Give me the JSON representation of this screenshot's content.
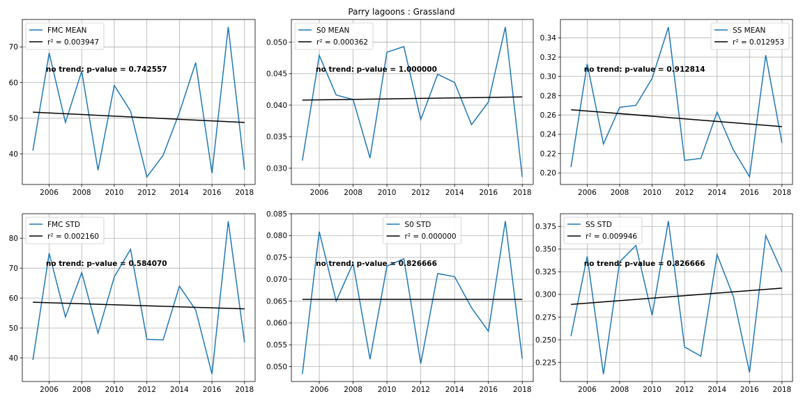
{
  "figure_title": "Parry lagoons : Grassland",
  "chart_data": [
    {
      "type": "line",
      "x": [
        2005,
        2006,
        2007,
        2008,
        2009,
        2010,
        2011,
        2012,
        2013,
        2014,
        2015,
        2016,
        2017,
        2018
      ],
      "series": [
        {
          "name": "FMC MEAN",
          "color": "#1f77b4",
          "values": [
            40.9,
            68.3,
            48.8,
            63.2,
            35.4,
            59.2,
            52.0,
            33.5,
            39.6,
            51.6,
            65.6,
            34.6,
            75.6,
            35.5
          ]
        },
        {
          "name": "r2_line",
          "color": "#000000",
          "values_start": 51.7,
          "values_end": 48.8
        }
      ],
      "legend": [
        "FMC MEAN",
        "r² = 0.003947"
      ],
      "legend_position": "upper-left",
      "annotation": "no trend: p-value = 0.742557",
      "xticks": [
        "2006",
        "2008",
        "2010",
        "2012",
        "2014",
        "2016",
        "2018"
      ],
      "yticks": [
        "40",
        "50",
        "60",
        "70"
      ],
      "ylim": [
        31.4,
        77.7
      ],
      "grid": true
    },
    {
      "type": "line",
      "x": [
        2005,
        2006,
        2007,
        2008,
        2009,
        2010,
        2011,
        2012,
        2013,
        2014,
        2015,
        2016,
        2017,
        2018
      ],
      "series": [
        {
          "name": "S0 MEAN",
          "color": "#1f77b4",
          "values": [
            0.0312,
            0.0479,
            0.0416,
            0.0409,
            0.0316,
            0.0484,
            0.0493,
            0.0377,
            0.0449,
            0.0436,
            0.0369,
            0.0405,
            0.0524,
            0.0286
          ]
        },
        {
          "name": "r2_line",
          "color": "#000000",
          "values_start": 0.0408,
          "values_end": 0.0413
        }
      ],
      "legend": [
        "S0 MEAN",
        "r² = 0.000362"
      ],
      "legend_position": "upper-left",
      "annotation": "no trend: p-value = 1.000000",
      "xticks": [
        "2006",
        "2008",
        "2010",
        "2012",
        "2014",
        "2016",
        "2018"
      ],
      "yticks": [
        "0.030",
        "0.035",
        "0.040",
        "0.045",
        "0.050"
      ],
      "ylim": [
        0.0274,
        0.0536
      ],
      "grid": true
    },
    {
      "type": "line",
      "x": [
        2005,
        2006,
        2007,
        2008,
        2009,
        2010,
        2011,
        2012,
        2013,
        2014,
        2015,
        2016,
        2017,
        2018
      ],
      "series": [
        {
          "name": "SS MEAN",
          "color": "#1f77b4",
          "values": [
            0.206,
            0.313,
            0.23,
            0.268,
            0.27,
            0.298,
            0.351,
            0.213,
            0.215,
            0.263,
            0.224,
            0.196,
            0.322,
            0.231
          ]
        },
        {
          "name": "r2_line",
          "color": "#000000",
          "values_start": 0.2655,
          "values_end": 0.248
        }
      ],
      "legend": [
        "SS MEAN",
        "r² = 0.012953"
      ],
      "legend_position": "upper-right",
      "annotation": "no trend: p-value = 0.912814",
      "xticks": [
        "2006",
        "2008",
        "2010",
        "2012",
        "2014",
        "2016",
        "2018"
      ],
      "yticks": [
        "0.20",
        "0.22",
        "0.24",
        "0.26",
        "0.28",
        "0.30",
        "0.32",
        "0.34"
      ],
      "ylim": [
        0.188,
        0.359
      ],
      "grid": true
    },
    {
      "type": "line",
      "x": [
        2005,
        2006,
        2007,
        2008,
        2009,
        2010,
        2011,
        2012,
        2013,
        2014,
        2015,
        2016,
        2017,
        2018
      ],
      "series": [
        {
          "name": "FMC STD",
          "color": "#1f77b4",
          "values": [
            39.3,
            75.0,
            53.7,
            68.5,
            48.3,
            67.1,
            76.3,
            46.2,
            46.0,
            64.0,
            56.0,
            34.6,
            85.7,
            45.2
          ]
        },
        {
          "name": "r2_line",
          "color": "#000000",
          "values_start": 58.6,
          "values_end": 56.4
        }
      ],
      "legend": [
        "FMC STD",
        "r² = 0.002160"
      ],
      "legend_position": "upper-left",
      "annotation": "no trend: p-value = 0.584070",
      "xticks": [
        "2006",
        "2008",
        "2010",
        "2012",
        "2014",
        "2016",
        "2018"
      ],
      "yticks": [
        "40",
        "50",
        "60",
        "70",
        "80"
      ],
      "ylim": [
        32.1,
        88.2
      ],
      "grid": true
    },
    {
      "type": "line",
      "x": [
        2005,
        2006,
        2007,
        2008,
        2009,
        2010,
        2011,
        2012,
        2013,
        2014,
        2015,
        2016,
        2017,
        2018
      ],
      "series": [
        {
          "name": "S0 STD",
          "color": "#1f77b4",
          "values": [
            0.0483,
            0.0809,
            0.065,
            0.0737,
            0.0517,
            0.073,
            0.0747,
            0.0507,
            0.0713,
            0.0706,
            0.0635,
            0.0581,
            0.0833,
            0.0518
          ]
        },
        {
          "name": "r2_line",
          "color": "#000000",
          "values_start": 0.0654,
          "values_end": 0.0654
        }
      ],
      "legend": [
        "S0 STD",
        "r² = 0.000000"
      ],
      "legend_position": "upper-center",
      "annotation": "no trend: p-value = 0.826666",
      "xticks": [
        "2006",
        "2008",
        "2010",
        "2012",
        "2014",
        "2016",
        "2018"
      ],
      "yticks": [
        "0.050",
        "0.055",
        "0.060",
        "0.065",
        "0.070",
        "0.075",
        "0.080",
        "0.085"
      ],
      "ylim": [
        0.0466,
        0.085
      ],
      "grid": true
    },
    {
      "type": "line",
      "x": [
        2005,
        2006,
        2007,
        2008,
        2009,
        2010,
        2011,
        2012,
        2013,
        2014,
        2015,
        2016,
        2017,
        2018
      ],
      "series": [
        {
          "name": "SS STD",
          "color": "#1f77b4",
          "values": [
            0.254,
            0.342,
            0.212,
            0.336,
            0.354,
            0.277,
            0.381,
            0.242,
            0.232,
            0.344,
            0.298,
            0.214,
            0.365,
            0.325
          ]
        },
        {
          "name": "r2_line",
          "color": "#000000",
          "values_start": 0.289,
          "values_end": 0.307
        }
      ],
      "legend": [
        "SS STD",
        "r² = 0.009946"
      ],
      "legend_position": "upper-left",
      "annotation": "no trend: p-value = 0.826666",
      "xticks": [
        "2006",
        "2008",
        "2010",
        "2012",
        "2014",
        "2016",
        "2018"
      ],
      "yticks": [
        "0.225",
        "0.250",
        "0.275",
        "0.300",
        "0.325",
        "0.350",
        "0.375"
      ],
      "ylim": [
        0.204,
        0.389
      ],
      "grid": true
    }
  ]
}
